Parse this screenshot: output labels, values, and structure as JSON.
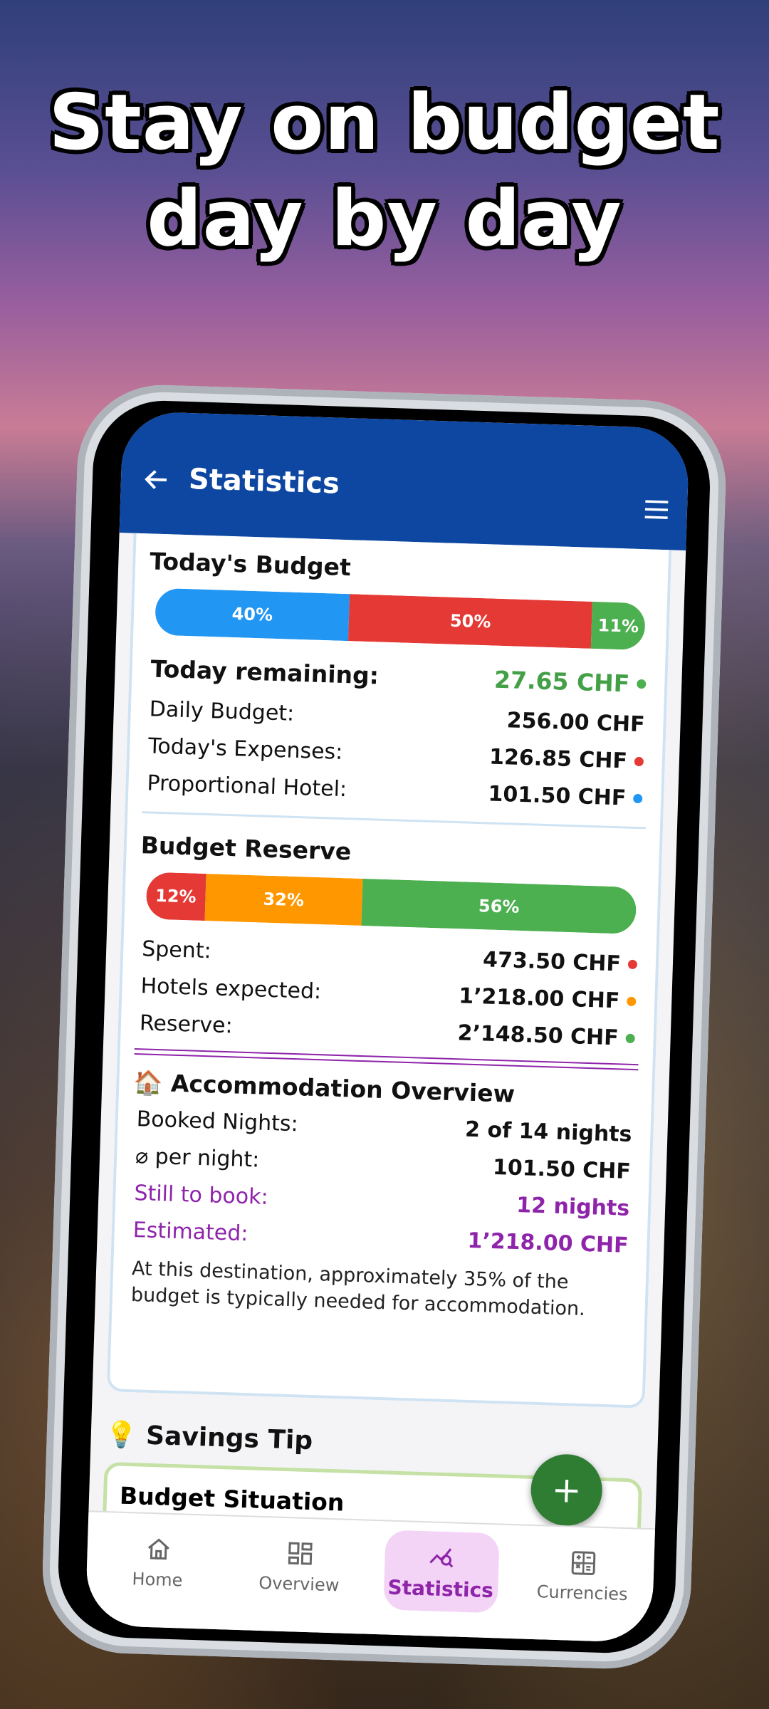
{
  "headline": [
    "Stay on budget",
    "day by day"
  ],
  "app_bar": {
    "title": "Statistics"
  },
  "todays_budget": {
    "title": "Today's Budget",
    "bar": [
      {
        "value": 40,
        "label": "40%",
        "color": "#2196f3"
      },
      {
        "value": 50,
        "label": "50%",
        "color": "#e53935"
      },
      {
        "value": 11,
        "label": "11%",
        "color": "#4caf50"
      }
    ],
    "remaining": {
      "label": "Today remaining:",
      "value": "27.65 CHF",
      "dot": "#4caf50"
    },
    "rows": [
      {
        "label": "Daily Budget:",
        "value": "256.00 CHF"
      },
      {
        "label": "Today's Expenses:",
        "value": "126.85 CHF",
        "dot": "#e53935"
      },
      {
        "label": "Proportional Hotel:",
        "value": "101.50 CHF",
        "dot": "#2196f3"
      }
    ]
  },
  "budget_reserve": {
    "title": "Budget Reserve",
    "bar": [
      {
        "value": 12,
        "label": "12%",
        "color": "#e53935"
      },
      {
        "value": 32,
        "label": "32%",
        "color": "#ff9800"
      },
      {
        "value": 56,
        "label": "56%",
        "color": "#4caf50"
      }
    ],
    "rows": [
      {
        "label": "Spent:",
        "value": "473.50 CHF",
        "dot": "#e53935"
      },
      {
        "label": "Hotels expected:",
        "value": "1’218.00 CHF",
        "dot": "#ff9800"
      },
      {
        "label": "Reserve:",
        "value": "2’148.50 CHF",
        "dot": "#4caf50"
      }
    ]
  },
  "accommodation": {
    "icon": "🏠",
    "title": "Accommodation Overview",
    "rows": [
      {
        "label": "Booked Nights:",
        "value": "2 of 14 nights"
      },
      {
        "label": "⌀ per night:",
        "value": "101.50 CHF"
      },
      {
        "label": "Still to book:",
        "value": "12 nights",
        "highlight": true
      },
      {
        "label": "Estimated:",
        "value": "1’218.00 CHF",
        "highlight": true
      }
    ],
    "note": "At this destination, approximately 35% of the budget is typically needed for accommodation."
  },
  "savings_tip": {
    "icon": "💡",
    "title": "Savings Tip",
    "card_title": "Budget Situation"
  },
  "fab": "+",
  "nav": [
    {
      "label": "Home",
      "active": false
    },
    {
      "label": "Overview",
      "active": false
    },
    {
      "label": "Statistics",
      "active": true
    },
    {
      "label": "Currencies",
      "active": false
    }
  ]
}
